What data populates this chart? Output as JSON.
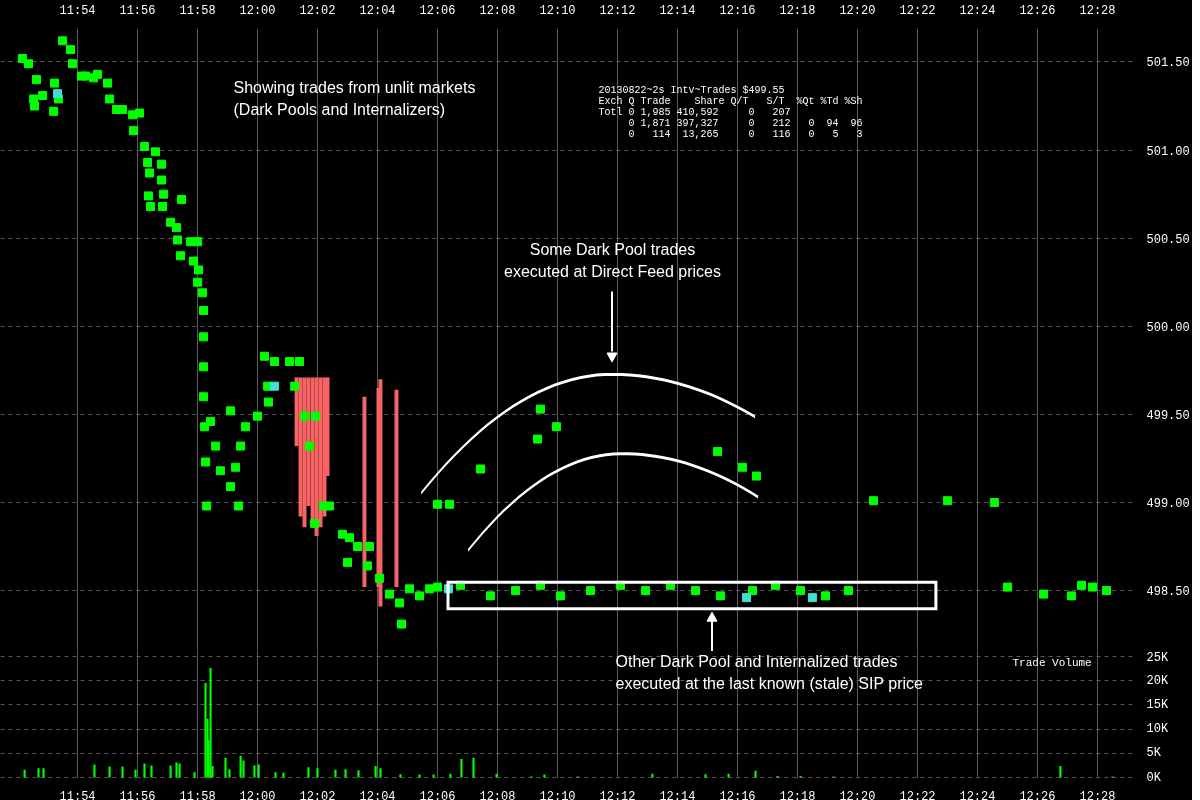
{
  "chart_data": [
    {
      "type": "scatter",
      "marker": "square",
      "grid": true,
      "xlim": [
        11.8572,
        12.4878
      ],
      "ylim": [
        498.16,
        501.69
      ],
      "xticks": [
        {
          "value": 11.9,
          "label": "11:54"
        },
        {
          "value": 11.9333,
          "label": "11:56"
        },
        {
          "value": 11.9667,
          "label": "11:58"
        },
        {
          "value": 12.0,
          "label": "12:00"
        },
        {
          "value": 12.0333,
          "label": "12:02"
        },
        {
          "value": 12.0667,
          "label": "12:04"
        },
        {
          "value": 12.1,
          "label": "12:06"
        },
        {
          "value": 12.1333,
          "label": "12:08"
        },
        {
          "value": 12.1667,
          "label": "12:10"
        },
        {
          "value": 12.2,
          "label": "12:12"
        },
        {
          "value": 12.2333,
          "label": "12:14"
        },
        {
          "value": 12.2667,
          "label": "12:16"
        },
        {
          "value": 12.3,
          "label": "12:18"
        },
        {
          "value": 12.3333,
          "label": "12:20"
        },
        {
          "value": 12.3667,
          "label": "12:22"
        },
        {
          "value": 12.4,
          "label": "12:24"
        },
        {
          "value": 12.4333,
          "label": "12:26"
        },
        {
          "value": 12.4667,
          "label": "12:28"
        }
      ],
      "yticks": [
        {
          "value": 498.5,
          "label": "498.50"
        },
        {
          "value": 499.0,
          "label": "499.00"
        },
        {
          "value": 499.5,
          "label": "499.50"
        },
        {
          "value": 500.0,
          "label": "500.00"
        },
        {
          "value": 500.5,
          "label": "500.50"
        },
        {
          "value": 501.0,
          "label": "501.00"
        },
        {
          "value": 501.5,
          "label": "501.50"
        }
      ],
      "series": [
        {
          "type": "scatter",
          "color": "#00ff00",
          "x": [
            11.8694,
            11.8728,
            11.8772,
            11.8756,
            11.8761,
            11.8806,
            11.8872,
            11.8894,
            11.8867,
            11.8917,
            11.8961,
            11.8972,
            11.9022,
            11.9044,
            11.9089,
            11.9111,
            11.9167,
            11.9178,
            11.9217,
            11.925,
            11.9306,
            11.9344,
            11.9311,
            11.9372,
            11.9389,
            11.9433,
            11.9467,
            11.9467,
            11.94,
            11.9394,
            11.9406,
            11.9472,
            11.9478,
            11.9517,
            11.9578,
            11.955,
            11.9556,
            11.9628,
            11.9572,
            11.9667,
            11.9644,
            11.9672,
            11.9667,
            11.9694,
            11.97,
            11.97,
            11.97,
            11.97,
            11.9706,
            11.9711,
            11.9717,
            11.9739,
            11.9767,
            11.9794,
            11.985,
            11.9878,
            11.9906,
            11.9933,
            11.9894,
            11.985,
            12.0039,
            12.0094,
            12.0178,
            12.0233,
            12.0056,
            12.0206,
            12.0,
            12.0061,
            12.0261,
            12.0289,
            12.0322,
            12.0317,
            12.0367,
            12.04,
            12.0472,
            12.0511,
            12.0556,
            12.0611,
            12.05,
            12.0622,
            12.0678,
            12.0733,
            12.0789,
            12.0844,
            12.09,
            12.0956,
            12.1,
            12.08,
            12.1,
            12.1067,
            12.1239,
            12.1556,
            12.1572,
            12.1661,
            12.2556,
            12.2694,
            12.2772,
            12.3422,
            12.3833,
            12.4094,
            12.1128,
            12.1294,
            12.1433,
            12.1572,
            12.1683,
            12.185,
            12.2017,
            12.2156,
            12.2294,
            12.2433,
            12.2572,
            12.275,
            12.2878,
            12.3017,
            12.3156,
            12.3283,
            12.4167,
            12.4367,
            12.4522,
            12.4578,
            12.4639,
            12.4717
          ],
          "values": [
            501.52,
            501.49,
            501.4,
            501.29,
            501.25,
            501.31,
            501.38,
            501.29,
            501.22,
            501.62,
            501.57,
            501.49,
            501.42,
            501.42,
            501.41,
            501.43,
            501.38,
            501.29,
            501.23,
            501.23,
            501.2,
            501.21,
            501.11,
            501.02,
            500.93,
            500.99,
            500.92,
            500.83,
            500.87,
            500.74,
            500.68,
            500.68,
            500.75,
            500.59,
            500.72,
            500.56,
            500.49,
            500.48,
            500.4,
            500.48,
            500.37,
            500.32,
            500.25,
            500.19,
            500.09,
            499.94,
            499.77,
            499.6,
            499.43,
            499.23,
            498.98,
            499.46,
            499.32,
            499.18,
            499.09,
            499.2,
            499.32,
            499.43,
            498.98,
            499.52,
            499.83,
            499.8,
            499.8,
            499.8,
            499.66,
            499.66,
            499.49,
            499.57,
            499.49,
            499.32,
            499.49,
            498.88,
            498.98,
            498.98,
            498.82,
            498.8,
            498.75,
            498.64,
            498.66,
            498.75,
            498.57,
            498.48,
            498.43,
            498.51,
            498.47,
            498.51,
            498.52,
            498.31,
            498.99,
            498.99,
            499.19,
            499.36,
            499.53,
            499.43,
            499.29,
            499.2,
            499.15,
            499.01,
            499.01,
            499.0,
            498.53,
            498.47,
            498.5,
            498.53,
            498.47,
            498.5,
            498.53,
            498.5,
            498.53,
            498.5,
            498.47,
            498.5,
            498.53,
            498.5,
            498.47,
            498.5,
            498.52,
            498.48,
            498.47,
            498.53,
            498.52,
            498.5
          ]
        },
        {
          "type": "scatter",
          "color": "#40e0d0",
          "x": [
            11.8889,
            12.0094,
            12.1061,
            12.2717,
            12.3083
          ],
          "values": [
            501.32,
            499.66,
            498.51,
            498.46,
            498.46
          ]
        },
        {
          "type": "bar",
          "color": "#f86464",
          "x": [
            12.0217,
            12.0239,
            12.0261,
            12.0283,
            12.0306,
            12.0328,
            12.035,
            12.0372,
            12.0389,
            12.0594,
            12.0672,
            12.0683,
            12.0772
          ],
          "base": [
            499.32,
            498.92,
            498.86,
            498.98,
            498.89,
            498.81,
            498.86,
            498.92,
            499.15,
            498.52,
            498.52,
            498.41,
            498.52
          ],
          "values": [
            0.39,
            0.79,
            0.85,
            0.73,
            0.82,
            0.9,
            0.85,
            0.79,
            0.56,
            1.08,
            1.13,
            1.29,
            1.12
          ]
        }
      ],
      "annotations": [
        "Showing trades from unlit markets\n(Dark Pools and Internalizers)",
        "20130822~2s Intv~Trades $499.55",
        "Exch Q Trade    Share Q/T   S/T  %Qt %Td %Sh",
        "Totl 0 1,985 410,592     0   207",
        "0 1,871 397,327     0   212   0  94  96",
        "0   114  13,265     0   116   0   5   3",
        "Some Dark Pool trades\nexecuted at Direct Feed prices"
      ]
    },
    {
      "type": "bar",
      "grid": true,
      "color": "#00ff00",
      "ylabel": "Trade Volume",
      "annotations": [
        "Other Dark Pool and Internalized trades\nexecuted at the last known (stale) SIP price"
      ],
      "xlim": [
        11.8572,
        12.4878
      ],
      "ylim": [
        -200,
        26200
      ],
      "xticks": [
        {
          "value": 11.9,
          "label": "11:54"
        },
        {
          "value": 11.9333,
          "label": "11:56"
        },
        {
          "value": 11.9667,
          "label": "11:58"
        },
        {
          "value": 12.0,
          "label": "12:00"
        },
        {
          "value": 12.0333,
          "label": "12:02"
        },
        {
          "value": 12.0667,
          "label": "12:04"
        },
        {
          "value": 12.1,
          "label": "12:06"
        },
        {
          "value": 12.1333,
          "label": "12:08"
        },
        {
          "value": 12.1667,
          "label": "12:10"
        },
        {
          "value": 12.2,
          "label": "12:12"
        },
        {
          "value": 12.2333,
          "label": "12:14"
        },
        {
          "value": 12.2667,
          "label": "12:16"
        },
        {
          "value": 12.3,
          "label": "12:18"
        },
        {
          "value": 12.3333,
          "label": "12:20"
        },
        {
          "value": 12.3667,
          "label": "12:22"
        },
        {
          "value": 12.4,
          "label": "12:24"
        },
        {
          "value": 12.4333,
          "label": "12:26"
        },
        {
          "value": 12.4667,
          "label": "12:28"
        }
      ],
      "yticks": [
        {
          "value": 0,
          "label": "0K"
        },
        {
          "value": 5000,
          "label": "5K"
        },
        {
          "value": 10000,
          "label": "10K"
        },
        {
          "value": 15000,
          "label": "15K"
        },
        {
          "value": 20000,
          "label": "20K"
        },
        {
          "value": 25000,
          "label": "25K"
        }
      ],
      "x": [
        11.8706,
        11.8783,
        11.8811,
        11.9094,
        11.9178,
        11.925,
        11.9322,
        11.9372,
        11.9411,
        11.9517,
        11.955,
        11.9567,
        11.965,
        11.9711,
        11.9722,
        11.9728,
        11.9739,
        11.975,
        11.9822,
        11.9844,
        11.9906,
        11.9922,
        11.9983,
        12.0006,
        12.01,
        12.0144,
        12.0283,
        12.0333,
        12.0433,
        12.0489,
        12.0561,
        12.0656,
        12.0683,
        12.0794,
        12.09,
        12.0978,
        12.1072,
        12.1133,
        12.12,
        12.1328,
        12.1522,
        12.1594,
        12.1778,
        12.2194,
        12.2489,
        12.2617,
        12.2767,
        12.2889,
        12.3017,
        12.32,
        12.4461,
        12.475
      ],
      "values": [
        1600,
        1900,
        1900,
        2700,
        2300,
        2300,
        1600,
        2900,
        2500,
        2500,
        3100,
        2900,
        1100,
        19500,
        12100,
        7700,
        22600,
        2400,
        4100,
        1700,
        4500,
        3500,
        2500,
        2700,
        1100,
        1000,
        2100,
        1900,
        1600,
        1700,
        1500,
        2400,
        1900,
        700,
        600,
        600,
        800,
        3800,
        4100,
        800,
        200,
        600,
        200,
        800,
        700,
        800,
        1400,
        300,
        300,
        200,
        2400,
        200
      ]
    }
  ]
}
